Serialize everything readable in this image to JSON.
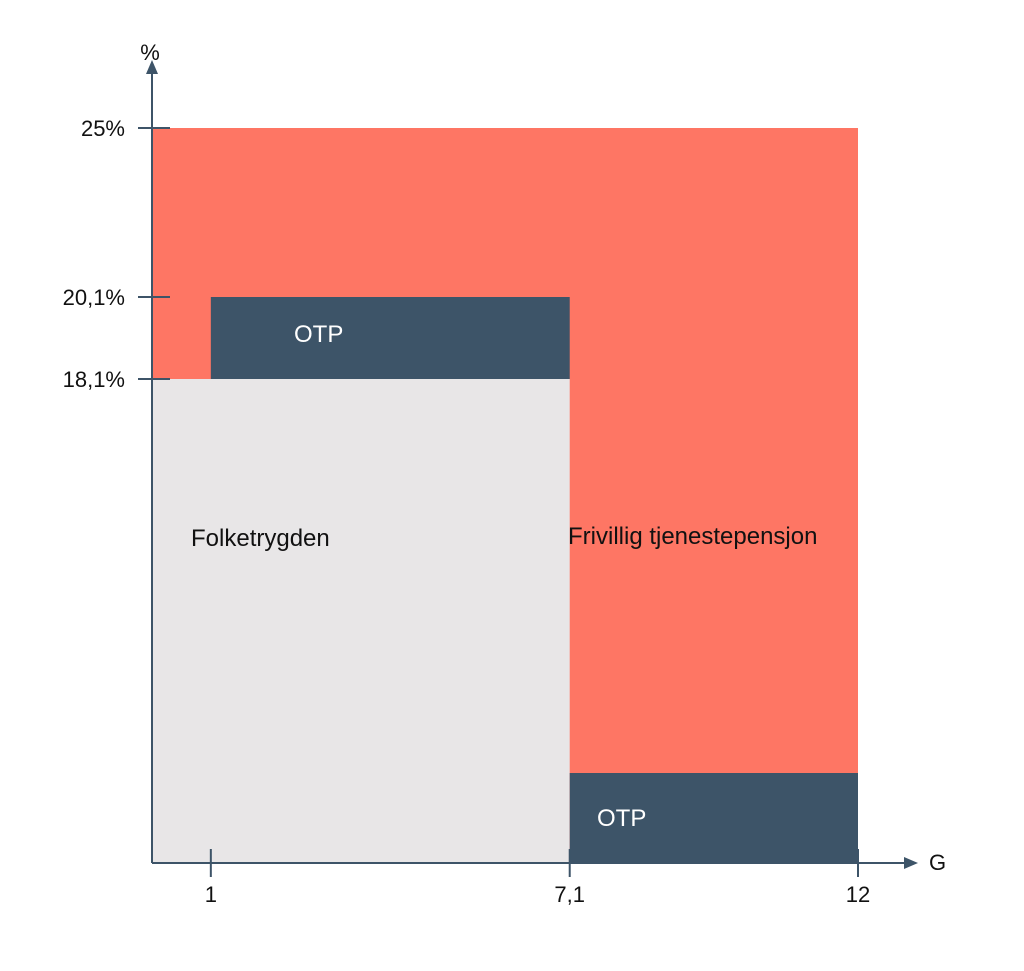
{
  "chart_data": {
    "type": "area",
    "title": "",
    "xlabel": "G",
    "ylabel": "%",
    "x_ticks": [
      {
        "value": 1,
        "label": "1"
      },
      {
        "value": 7.1,
        "label": "7,1"
      },
      {
        "value": 12,
        "label": "12"
      }
    ],
    "y_ticks": [
      {
        "value": 25,
        "label": "25%"
      },
      {
        "value": 20.1,
        "label": "20,1%"
      },
      {
        "value": 18.1,
        "label": "18,1%"
      }
    ],
    "regions": [
      {
        "name": "frivillig",
        "label": "Frivillig tjenestepensjon",
        "x0": 0,
        "x1": 12,
        "y0": 0,
        "y1": 25,
        "color": "#fe7664",
        "text_color": "#111111"
      },
      {
        "name": "folketrygden",
        "label": "Folketrygden",
        "x0": 0,
        "x1": 7.1,
        "y0": 0,
        "y1": 18.1,
        "color": "#e8e6e7",
        "text_color": "#111111"
      },
      {
        "name": "otp-upper",
        "label": "OTP",
        "x0": 1,
        "x1": 7.1,
        "y0": 18.1,
        "y1": 20.1,
        "color": "#3d5468",
        "text_color": "#ffffff"
      },
      {
        "name": "otp-lower",
        "label": "OTP",
        "x0": 7.1,
        "x1": 12,
        "y0": 0,
        "y1": 2.2,
        "color": "#3d5468",
        "text_color": "#ffffff"
      }
    ],
    "grid": false,
    "legend": "none"
  },
  "colors": {
    "axis": "#3d5468",
    "text": "#111111"
  }
}
